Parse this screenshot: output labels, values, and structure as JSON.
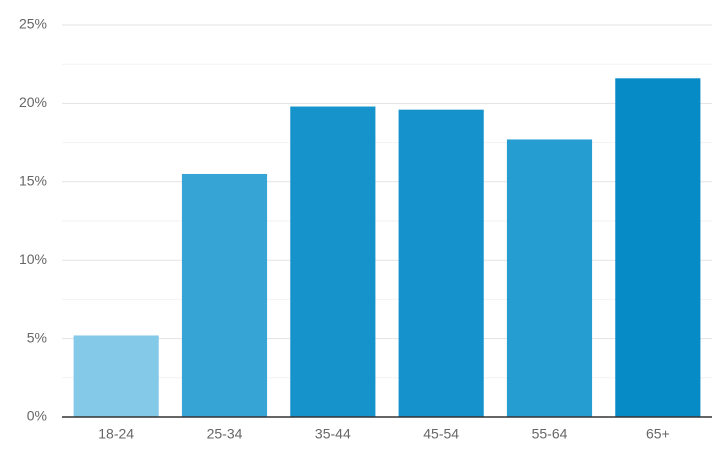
{
  "chart_data": {
    "type": "bar",
    "categories": [
      "18-24",
      "25-34",
      "35-44",
      "45-54",
      "55-64",
      "65+"
    ],
    "values": [
      5.2,
      15.5,
      19.8,
      19.6,
      17.7,
      21.6
    ],
    "colors": [
      "#85c9e8",
      "#36a5d6",
      "#1793cc",
      "#1592cc",
      "#259dd1",
      "#078bc6"
    ],
    "ylim": [
      0,
      25
    ],
    "yticks": [
      {
        "value": 0,
        "label": "0%"
      },
      {
        "value": 5,
        "label": "5%"
      },
      {
        "value": 10,
        "label": "10%"
      },
      {
        "value": 15,
        "label": "15%"
      },
      {
        "value": 20,
        "label": "20%"
      },
      {
        "value": 25,
        "label": "25%"
      }
    ],
    "minor_yticks": [
      2.5,
      7.5,
      12.5,
      17.5,
      22.5
    ],
    "grid": true
  }
}
